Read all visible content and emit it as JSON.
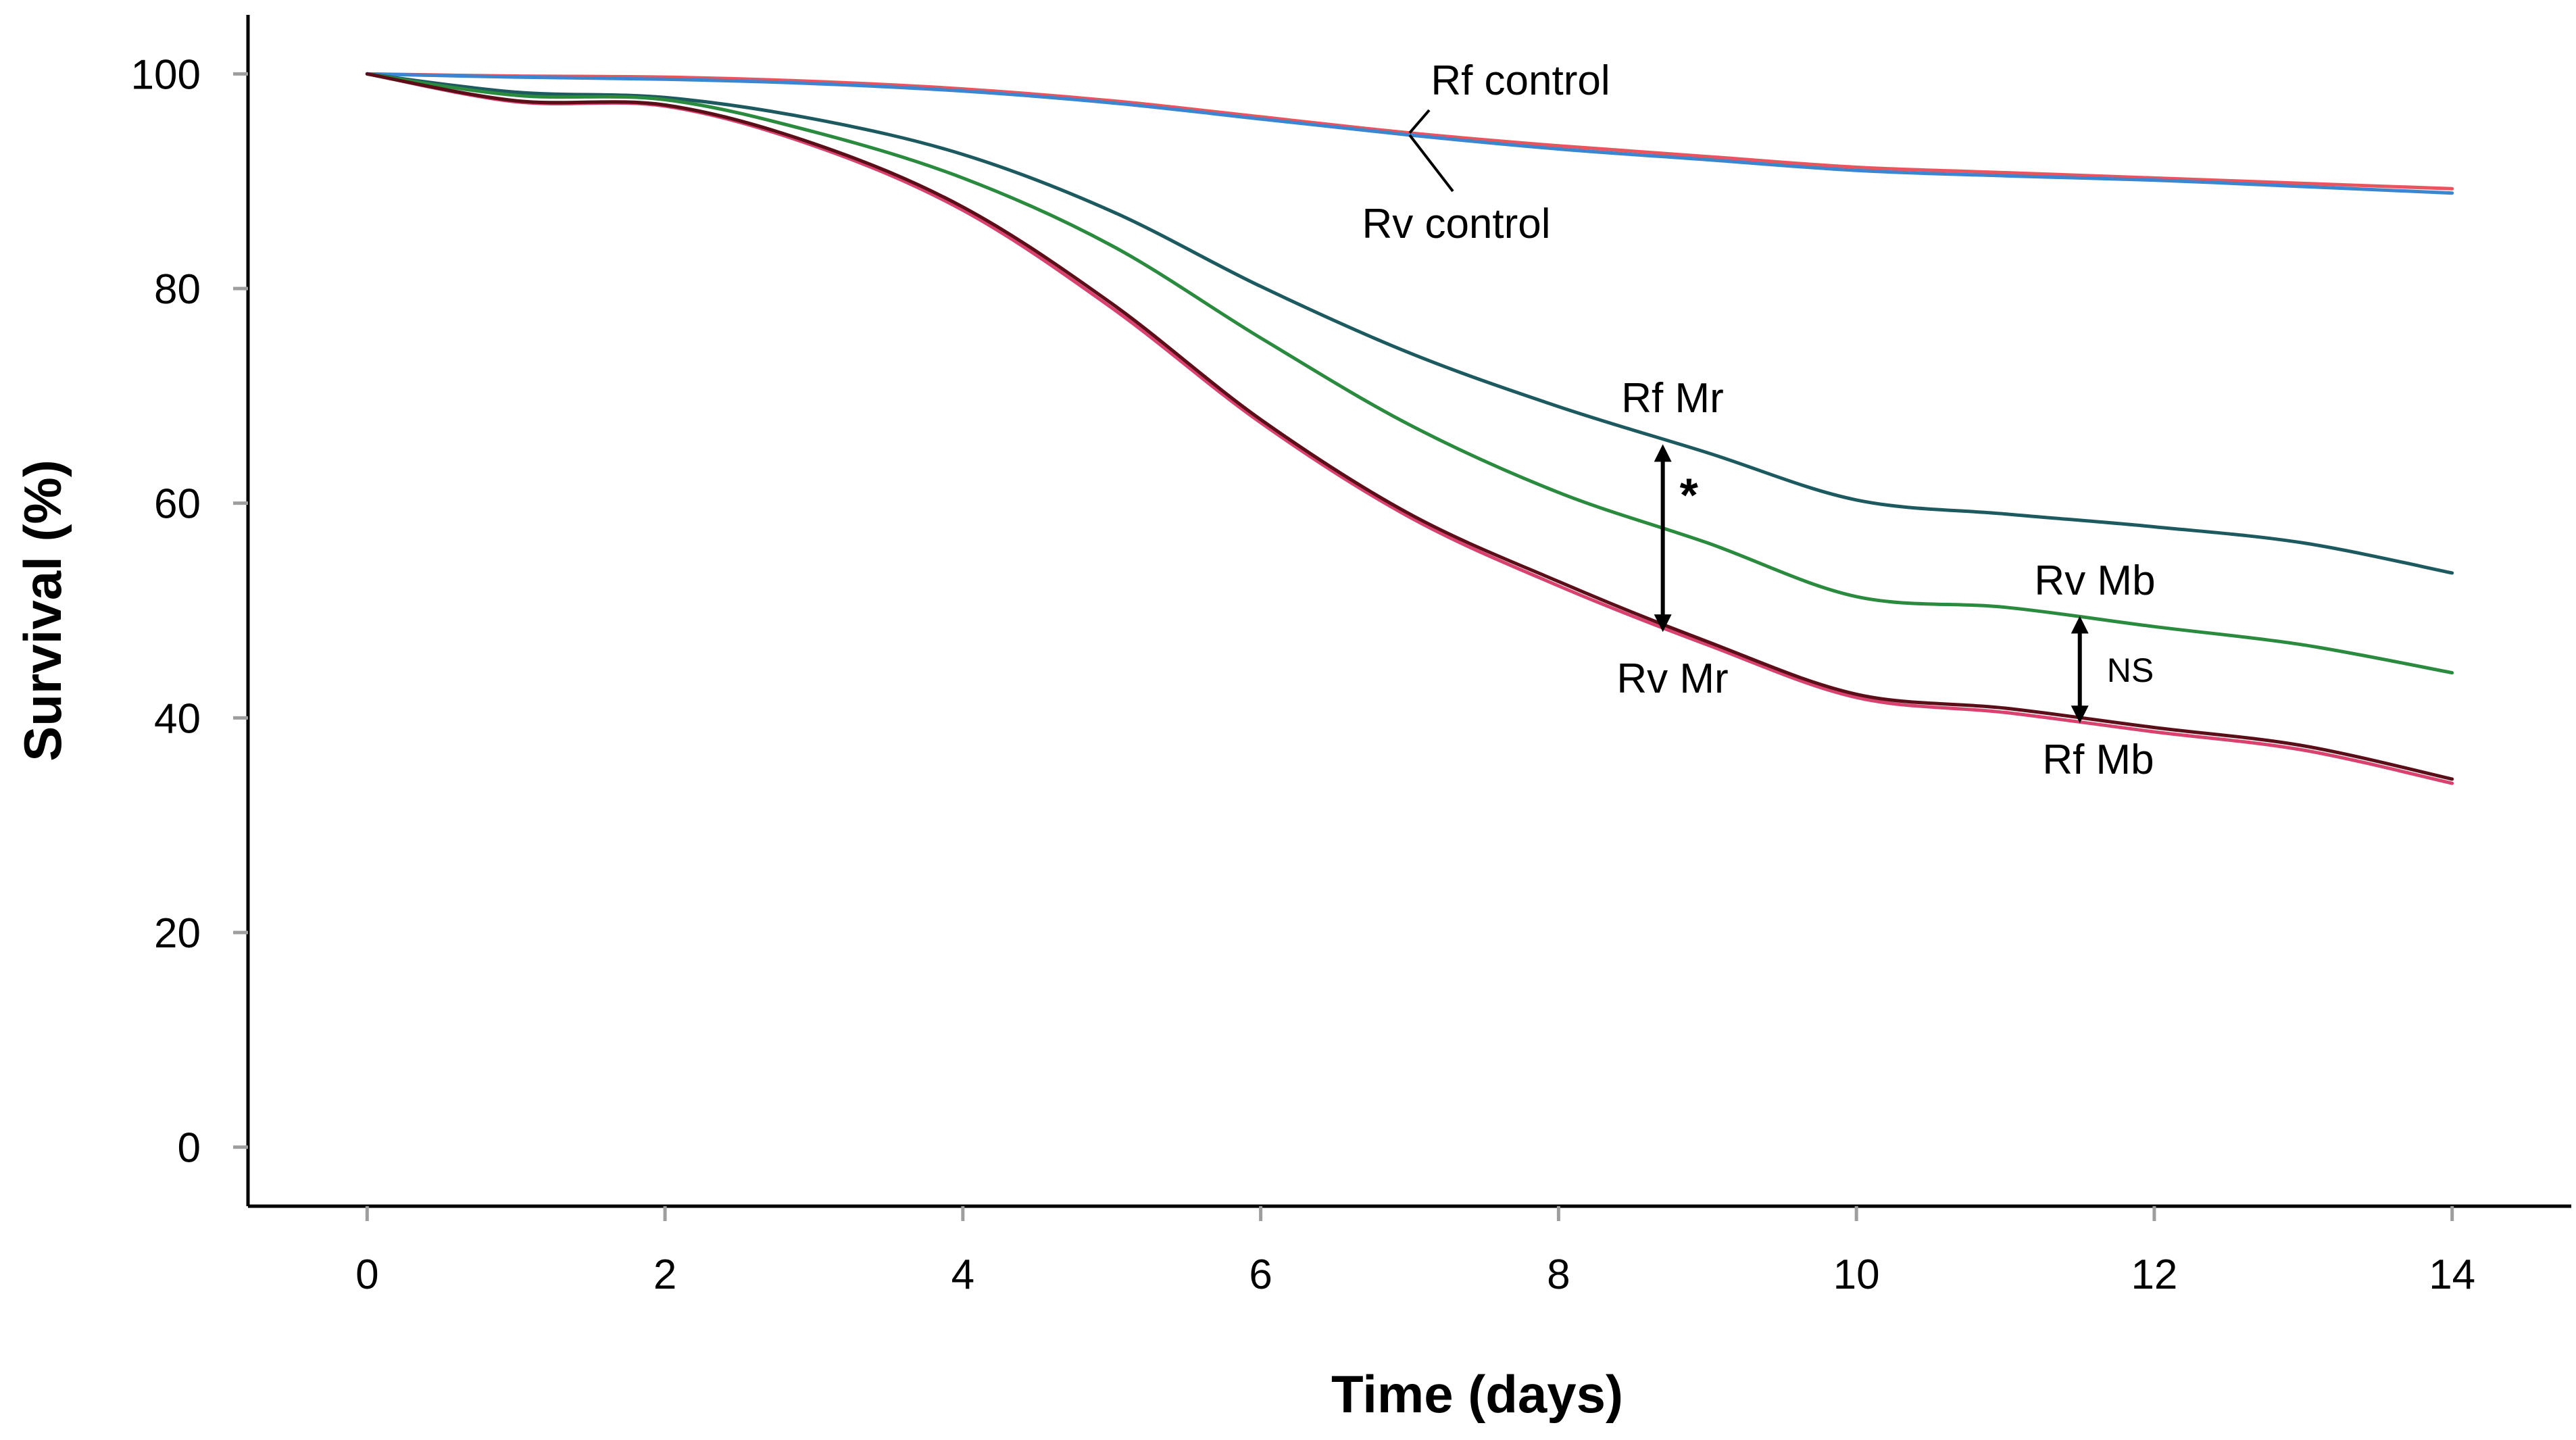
{
  "chart_data": {
    "type": "line",
    "title": "",
    "xlabel": "Time (days)",
    "ylabel": "Survival (%)",
    "xlim": [
      -0.8,
      14.8
    ],
    "ylim": [
      -5.5,
      105.5
    ],
    "x_ticks": [
      0,
      2,
      4,
      6,
      8,
      10,
      12,
      14
    ],
    "y_ticks": [
      0,
      20,
      40,
      60,
      80,
      100
    ],
    "series": [
      {
        "name": "Rf control",
        "color": "#e8555e",
        "x": [
          0,
          1,
          2,
          3,
          4,
          5,
          6,
          7,
          8,
          9,
          10,
          11,
          12,
          13,
          14
        ],
        "y": [
          100,
          99.8,
          99.7,
          99.3,
          98.6,
          97.5,
          96,
          94.5,
          93.3,
          92.3,
          91.3,
          90.8,
          90.3,
          89.8,
          89.3
        ]
      },
      {
        "name": "Rv control",
        "color": "#3a86d0",
        "x": [
          0,
          1,
          2,
          3,
          4,
          5,
          6,
          7,
          8,
          9,
          10,
          11,
          12,
          13,
          14
        ],
        "y": [
          100,
          99.7,
          99.5,
          99.1,
          98.4,
          97.3,
          95.8,
          94.3,
          93,
          92,
          91,
          90.5,
          90.1,
          89.5,
          88.9
        ]
      },
      {
        "name": "Rf Mr",
        "color": "#1c5a60",
        "x": [
          0,
          1,
          2,
          3,
          4,
          5,
          6,
          7,
          8,
          9,
          10,
          11,
          12,
          13,
          14
        ],
        "y": [
          100,
          98.3,
          97.8,
          95.8,
          92.5,
          87.2,
          80.2,
          74,
          69,
          64.7,
          60.3,
          59,
          57.8,
          56.3,
          53.5
        ]
      },
      {
        "name": "Rv Mb",
        "color": "#2a8a3e",
        "x": [
          0,
          1,
          2,
          3,
          4,
          5,
          6,
          7,
          8,
          9,
          10,
          11,
          12,
          13,
          14
        ],
        "y": [
          100,
          98,
          97.6,
          94.6,
          90.3,
          84,
          75.4,
          67.3,
          61,
          56.3,
          51.3,
          50.3,
          48.5,
          46.8,
          44.2
        ]
      },
      {
        "name": "Rv Mr",
        "color": "#d9426e",
        "x": [
          0,
          1,
          2,
          3,
          4,
          5,
          6,
          7,
          8,
          9,
          10,
          11,
          12,
          13,
          14
        ],
        "y": [
          100,
          97.4,
          97,
          93.3,
          87.3,
          78.2,
          67.5,
          58.7,
          52.3,
          46.8,
          41.9,
          40.5,
          38.7,
          37,
          33.9
        ]
      },
      {
        "name": "Rf Mb",
        "color": "#5a0f18",
        "x": [
          0,
          1,
          2,
          3,
          4,
          5,
          6,
          7,
          8,
          9,
          10,
          11,
          12,
          13,
          14
        ],
        "y": [
          100,
          97.5,
          97.1,
          93.5,
          87.6,
          78.6,
          67.8,
          59,
          52.7,
          47.1,
          42.2,
          40.9,
          39.1,
          37.4,
          34.3
        ]
      }
    ],
    "annotations": [
      {
        "text": "Rf control",
        "target_series": "Rf control"
      },
      {
        "text": "Rv control",
        "target_series": "Rv control"
      },
      {
        "text": "Rf Mr",
        "target_series": "Rf Mr"
      },
      {
        "text": "Rv Mr",
        "target_series": "Rv Mr"
      },
      {
        "text": "Rv Mb",
        "target_series": "Rv Mb"
      },
      {
        "text": "Rf Mb",
        "target_series": "Rf Mb"
      }
    ],
    "comparisons": [
      {
        "label": "*",
        "x": 8.7,
        "y_from": 65.5,
        "y_to": 48
      },
      {
        "label": "NS",
        "x": 11.5,
        "y_from": 49.5,
        "y_to": 39.5
      }
    ]
  }
}
